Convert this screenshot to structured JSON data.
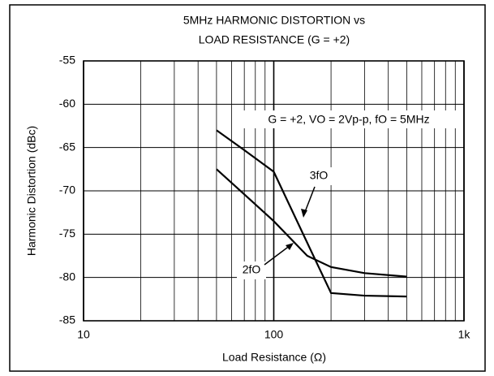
{
  "chart_data": {
    "type": "line",
    "title": [
      "5MHz HARMONIC DISTORTION vs",
      "LOAD RESISTANCE (G = +2)"
    ],
    "x_label": "Load Resistance (Ω)",
    "y_label": "Harmonic Distortion (dBc)",
    "annotation": "G = +2, VO = 2Vp-p, fO = 5MHz",
    "xscale": "log",
    "xlim": [
      10,
      1000
    ],
    "xticks": [
      10,
      100,
      {
        "value": 1000,
        "label": "1k"
      }
    ],
    "ylim": [
      -85,
      -55
    ],
    "yticks": [
      -85,
      -80,
      -75,
      -70,
      -65,
      -60,
      -55
    ],
    "grid": true,
    "x": [
      50,
      70,
      100,
      150,
      200,
      300,
      500
    ],
    "series": [
      {
        "name": "3fO",
        "color": "#000000",
        "values": [
          -63,
          -65.3,
          -67.8,
          -76,
          -81.8,
          -82.1,
          -82.2
        ]
      },
      {
        "name": "2fO",
        "color": "#000000",
        "values": [
          -67.5,
          -70.4,
          -73.5,
          -77.5,
          -78.8,
          -79.5,
          -79.9
        ]
      }
    ]
  }
}
